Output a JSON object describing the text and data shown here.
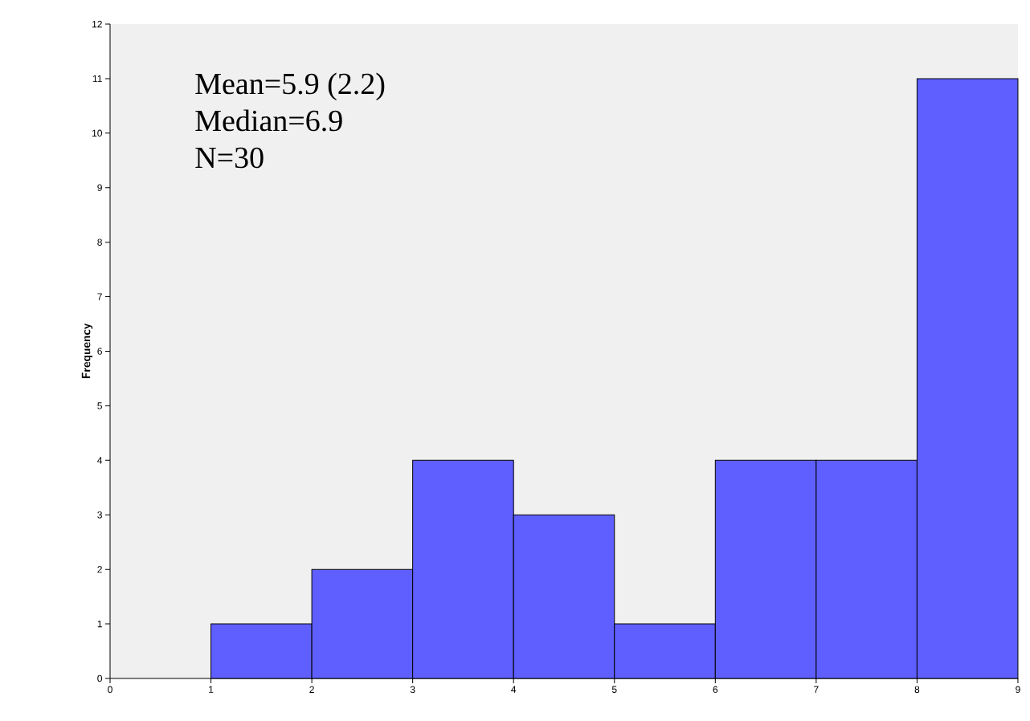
{
  "chart_data": {
    "type": "histogram",
    "ylabel": "Frequency",
    "bins": [
      1,
      2,
      3,
      4,
      5,
      6,
      7,
      8,
      9
    ],
    "values": [
      1,
      2,
      4,
      3,
      1,
      4,
      4,
      11
    ],
    "color": "#5f5fff",
    "xlim": [
      0,
      9
    ],
    "ylim": [
      0,
      12
    ],
    "xticks": [
      0,
      1,
      2,
      3,
      4,
      5,
      6,
      7,
      8,
      9
    ],
    "yticks": [
      0,
      1,
      2,
      3,
      4,
      5,
      6,
      7,
      8,
      9,
      10,
      11,
      12
    ],
    "annotations": [
      "Mean=5.9 (2.2)",
      "Median=6.9",
      "N=30"
    ]
  }
}
